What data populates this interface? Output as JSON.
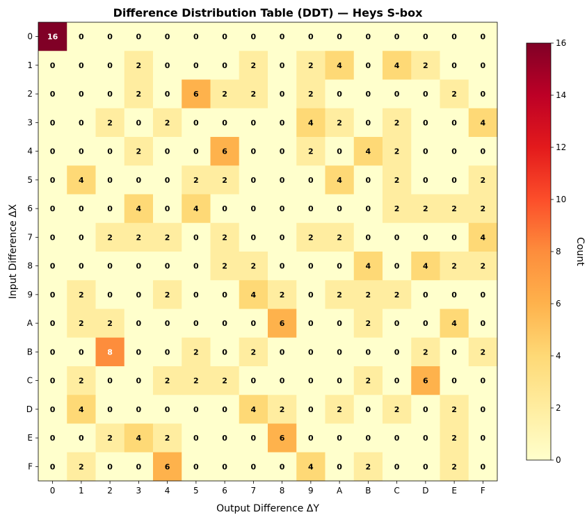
{
  "chart_data": {
    "type": "heatmap",
    "title": "Difference Distribution Table (DDT) — Heys S-box",
    "xlabel": "Output Difference ΔY",
    "ylabel": "Input Difference ΔX",
    "x_categories": [
      "0",
      "1",
      "2",
      "3",
      "4",
      "5",
      "6",
      "7",
      "8",
      "9",
      "A",
      "B",
      "C",
      "D",
      "E",
      "F"
    ],
    "y_categories": [
      "0",
      "1",
      "2",
      "3",
      "4",
      "5",
      "6",
      "7",
      "8",
      "9",
      "A",
      "B",
      "C",
      "D",
      "E",
      "F"
    ],
    "values": [
      [
        16,
        0,
        0,
        0,
        0,
        0,
        0,
        0,
        0,
        0,
        0,
        0,
        0,
        0,
        0,
        0
      ],
      [
        0,
        0,
        0,
        2,
        0,
        0,
        0,
        2,
        0,
        2,
        4,
        0,
        4,
        2,
        0,
        0
      ],
      [
        0,
        0,
        0,
        2,
        0,
        6,
        2,
        2,
        0,
        2,
        0,
        0,
        0,
        0,
        2,
        0
      ],
      [
        0,
        0,
        2,
        0,
        2,
        0,
        0,
        0,
        0,
        4,
        2,
        0,
        2,
        0,
        0,
        4
      ],
      [
        0,
        0,
        0,
        2,
        0,
        0,
        6,
        0,
        0,
        2,
        0,
        4,
        2,
        0,
        0,
        0
      ],
      [
        0,
        4,
        0,
        0,
        0,
        2,
        2,
        0,
        0,
        0,
        4,
        0,
        2,
        0,
        0,
        2
      ],
      [
        0,
        0,
        0,
        4,
        0,
        4,
        0,
        0,
        0,
        0,
        0,
        0,
        2,
        2,
        2,
        2
      ],
      [
        0,
        0,
        2,
        2,
        2,
        0,
        2,
        0,
        0,
        2,
        2,
        0,
        0,
        0,
        0,
        4
      ],
      [
        0,
        0,
        0,
        0,
        0,
        0,
        2,
        2,
        0,
        0,
        0,
        4,
        0,
        4,
        2,
        2
      ],
      [
        0,
        2,
        0,
        0,
        2,
        0,
        0,
        4,
        2,
        0,
        2,
        2,
        2,
        0,
        0,
        0
      ],
      [
        0,
        2,
        2,
        0,
        0,
        0,
        0,
        0,
        6,
        0,
        0,
        2,
        0,
        0,
        4,
        0
      ],
      [
        0,
        0,
        8,
        0,
        0,
        2,
        0,
        2,
        0,
        0,
        0,
        0,
        0,
        2,
        0,
        2
      ],
      [
        0,
        2,
        0,
        0,
        2,
        2,
        2,
        0,
        0,
        0,
        0,
        2,
        0,
        6,
        0,
        0
      ],
      [
        0,
        4,
        0,
        0,
        0,
        0,
        0,
        4,
        2,
        0,
        2,
        0,
        2,
        0,
        2,
        0
      ],
      [
        0,
        0,
        2,
        4,
        2,
        0,
        0,
        0,
        6,
        0,
        0,
        0,
        0,
        0,
        2,
        0
      ],
      [
        0,
        2,
        0,
        0,
        6,
        0,
        0,
        0,
        0,
        4,
        0,
        2,
        0,
        0,
        2,
        0
      ]
    ],
    "colorbar": {
      "label": "Count",
      "range": [
        0,
        16
      ],
      "ticks": [
        0,
        2,
        4,
        6,
        8,
        10,
        12,
        14,
        16
      ]
    },
    "colormap": "YlOrRd",
    "grid": false
  }
}
